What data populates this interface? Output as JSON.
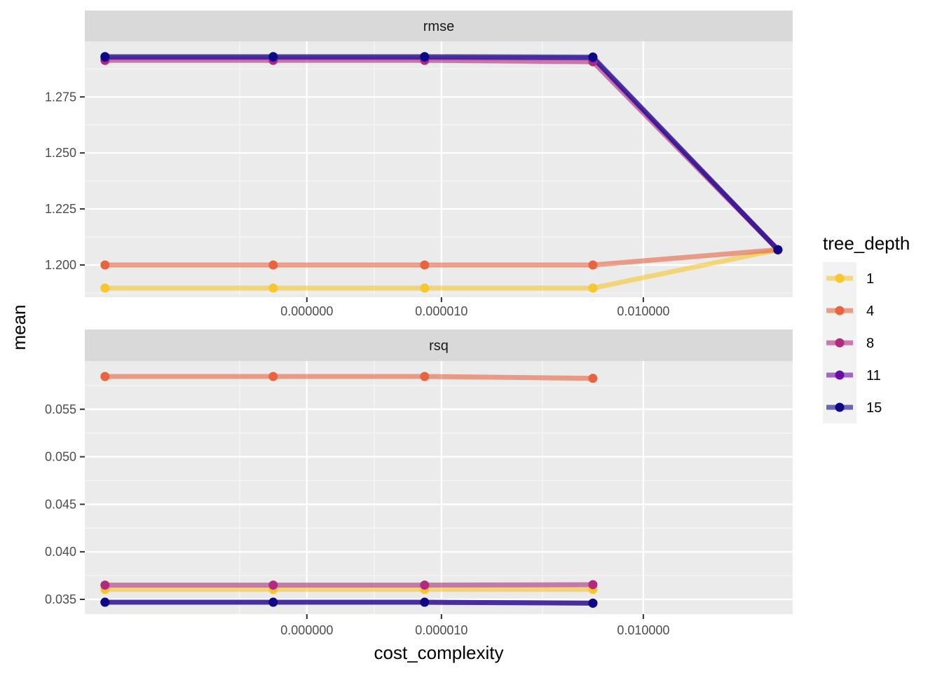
{
  "chart_data": {
    "type": "line",
    "facet_variable": "metric",
    "xlabel": "cost_complexity",
    "ylabel": "mean",
    "x_scale": "log10",
    "x_ticks": [
      {
        "value": 1e-07,
        "label": "0.000000"
      },
      {
        "value": 1e-05,
        "label": "0.000010"
      },
      {
        "value": 0.01,
        "label": "0.010000"
      }
    ],
    "x": [
      1e-10,
      3.16e-08,
      5.62e-06,
      0.00178,
      1
    ],
    "legend": {
      "title": "tree_depth",
      "placement": "right",
      "entries": [
        "1",
        "4",
        "8",
        "11",
        "15"
      ]
    },
    "series_colors": {
      "1": "#F9C62D",
      "4": "#E8643F",
      "8": "#B12A7E",
      "11": "#6A0CA6",
      "15": "#0D0887"
    },
    "facets": [
      {
        "name": "rmse",
        "y_ticks": [
          1.2,
          1.225,
          1.25,
          1.275
        ],
        "y_tick_labels": [
          "1.200",
          "1.225",
          "1.250",
          "1.275"
        ],
        "ylim": [
          1.1856,
          1.2998
        ],
        "series": [
          {
            "name": "1",
            "values": [
              1.1897,
              1.1897,
              1.1897,
              1.1897,
              1.2068
            ]
          },
          {
            "name": "4",
            "values": [
              1.2,
              1.2,
              1.2,
              1.2,
              1.2068
            ]
          },
          {
            "name": "8",
            "values": [
              1.2913,
              1.2913,
              1.2913,
              1.2907,
              1.2068
            ]
          },
          {
            "name": "11",
            "values": [
              1.2926,
              1.2926,
              1.2926,
              1.2924,
              1.2068
            ]
          },
          {
            "name": "15",
            "values": [
              1.293,
              1.293,
              1.293,
              1.2928,
              1.2068
            ]
          }
        ]
      },
      {
        "name": "rsq",
        "y_ticks": [
          0.035,
          0.04,
          0.045,
          0.05,
          0.055
        ],
        "y_tick_labels": [
          "0.035",
          "0.040",
          "0.045",
          "0.050",
          "0.055"
        ],
        "ylim": [
          0.03345,
          0.06007
        ],
        "series": [
          {
            "name": "1",
            "values": [
              0.03605,
              0.03605,
              0.03605,
              0.03605,
              null
            ]
          },
          {
            "name": "4",
            "values": [
              0.05845,
              0.05845,
              0.05845,
              0.05825,
              null
            ]
          },
          {
            "name": "8",
            "values": [
              0.0365,
              0.0365,
              0.0365,
              0.03655,
              null
            ]
          },
          {
            "name": "11",
            "values": [
              0.0347,
              0.0347,
              0.0347,
              0.0346,
              null
            ]
          },
          {
            "name": "15",
            "values": [
              0.0347,
              0.0347,
              0.0347,
              0.0346,
              null
            ]
          }
        ]
      }
    ]
  }
}
